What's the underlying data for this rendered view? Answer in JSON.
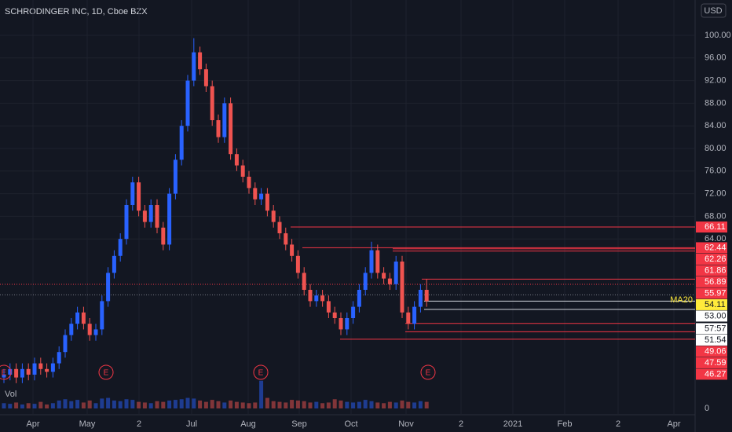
{
  "chart_data": {
    "type": "candlestick",
    "title": "SCHRODINGER INC, 1D, Cboe BZX",
    "currency": "USD",
    "volume_label": "Vol",
    "up_color": "#2962ff",
    "down_color": "#ef5350",
    "open": [
      39.5,
      40,
      41,
      39.5,
      41,
      40,
      42,
      41,
      40.5,
      42,
      44,
      47,
      49,
      51,
      49,
      47,
      48,
      53,
      58,
      61,
      64,
      70,
      74,
      69,
      67,
      70,
      66,
      63,
      72,
      78,
      84,
      92,
      97,
      94,
      91,
      85,
      82,
      88,
      79,
      77,
      75,
      73,
      71,
      72,
      69,
      67,
      65,
      63,
      61,
      58,
      55,
      53,
      54,
      53,
      51,
      50,
      48,
      50,
      52,
      55,
      58,
      62,
      58,
      57,
      56,
      60,
      51,
      49,
      52,
      55
    ],
    "high": [
      41,
      42,
      42,
      42,
      42,
      43,
      43,
      42,
      43,
      45,
      48,
      50,
      52,
      52,
      50,
      49,
      54,
      59,
      62,
      65,
      71,
      75,
      75,
      70,
      71,
      71,
      67,
      73,
      79,
      85,
      93,
      99.5,
      98,
      95,
      92,
      86,
      89,
      89,
      80,
      78,
      76,
      74,
      73,
      73,
      70,
      68,
      66,
      64,
      62,
      59,
      56,
      55,
      55,
      54,
      52,
      51,
      51,
      53,
      56,
      59,
      63.5,
      63,
      59,
      58,
      61,
      61,
      52,
      53,
      56,
      56.9
    ],
    "low": [
      38.5,
      39,
      38.5,
      38.5,
      39,
      39,
      40,
      39.5,
      39.5,
      41,
      43,
      46,
      48,
      48,
      46,
      46,
      47,
      52,
      57,
      60,
      63,
      69,
      68,
      66,
      66,
      65,
      62,
      62,
      71,
      77,
      83,
      91,
      93,
      90,
      84,
      81,
      81,
      78,
      76,
      74,
      72,
      70,
      70,
      68,
      66,
      64,
      62,
      60,
      57,
      54,
      52,
      52,
      52,
      50,
      49,
      47,
      47,
      49,
      51,
      54,
      57,
      57,
      56,
      55,
      55,
      50,
      48,
      48,
      51,
      52
    ],
    "close": [
      40,
      41,
      39.5,
      41,
      40,
      42,
      41,
      40.5,
      42,
      44,
      47,
      49,
      51,
      49,
      47,
      48,
      53,
      58,
      61,
      64,
      70,
      74,
      69,
      67,
      70,
      66,
      63,
      72,
      78,
      84,
      92,
      97,
      94,
      91,
      85,
      82,
      88,
      79,
      77,
      75,
      73,
      71,
      72,
      69,
      67,
      65,
      63,
      61,
      58,
      55,
      53,
      54,
      53,
      51,
      50,
      48,
      50,
      52,
      55,
      58,
      62,
      58,
      57,
      56,
      60,
      51,
      49,
      52,
      55,
      53
    ],
    "volume": [
      0.8,
      0.7,
      0.9,
      0.6,
      0.8,
      0.7,
      1.0,
      0.6,
      0.8,
      1.2,
      1.4,
      1.1,
      1.3,
      0.9,
      1.2,
      0.8,
      1.5,
      1.6,
      1.2,
      1.1,
      1.4,
      1.3,
      1.0,
      0.9,
      0.8,
      1.1,
      1.0,
      1.2,
      1.3,
      1.4,
      1.6,
      1.5,
      1.2,
      1.0,
      1.3,
      1.1,
      0.9,
      1.2,
      1.0,
      0.9,
      0.8,
      0.9,
      4.2,
      1.6,
      1.1,
      1.0,
      0.9,
      1.3,
      1.2,
      1.1,
      0.9,
      1.0,
      0.8,
      0.9,
      1.4,
      1.2,
      1.0,
      0.9,
      1.0,
      1.3,
      1.1,
      0.9,
      0.8,
      1.0,
      0.9,
      1.2,
      1.0,
      0.9,
      1.1,
      1.0
    ],
    "vol_lim": [
      0,
      5
    ],
    "vol_ticks": [
      0
    ],
    "ylim": [
      32.5,
      105
    ],
    "yticks": [
      {
        "value": 64,
        "label": "64.00"
      },
      {
        "value": 68,
        "label": "68.00"
      },
      {
        "value": 72,
        "label": "72.00"
      },
      {
        "value": 76,
        "label": "76.00"
      },
      {
        "value": 80,
        "label": "80.00"
      },
      {
        "value": 84,
        "label": "84.00"
      },
      {
        "value": 88,
        "label": "88.00"
      },
      {
        "value": 92,
        "label": "92.00"
      },
      {
        "value": 96,
        "label": "96.00"
      },
      {
        "value": 100,
        "label": "100.00"
      }
    ],
    "x_labels": [
      "Apr",
      "May",
      "2",
      "Jul",
      "Aug",
      "Sep",
      "Oct",
      "Nov",
      "2",
      "2021",
      "Feb",
      "2",
      "Apr"
    ],
    "earnings": [
      "E",
      "E",
      "E",
      "E"
    ],
    "ma_label": "MA20",
    "countdown": "57:57",
    "levels": [
      {
        "value": 66.11,
        "label": "66.11",
        "style": "red"
      },
      {
        "value": 62.44,
        "label": "62.44",
        "style": "red"
      },
      {
        "value": 62.26,
        "label": "62.26",
        "style": "red"
      },
      {
        "value": 61.86,
        "label": "61.86",
        "style": "red"
      },
      {
        "value": 56.89,
        "label": "56.89",
        "style": "red"
      },
      {
        "value": 55.97,
        "label": "55.97",
        "style": "red"
      },
      {
        "value": 54.11,
        "label": "54.11",
        "style": "yellow"
      },
      {
        "value": 53,
        "label": "53.00",
        "style": "white"
      },
      {
        "value": 51.54,
        "label": "51.54",
        "style": "white"
      },
      {
        "value": 49.06,
        "label": "49.06",
        "style": "red"
      },
      {
        "value": 47.59,
        "label": "47.59",
        "style": "red"
      },
      {
        "value": 46.27,
        "label": "46.27",
        "style": "red"
      }
    ]
  }
}
